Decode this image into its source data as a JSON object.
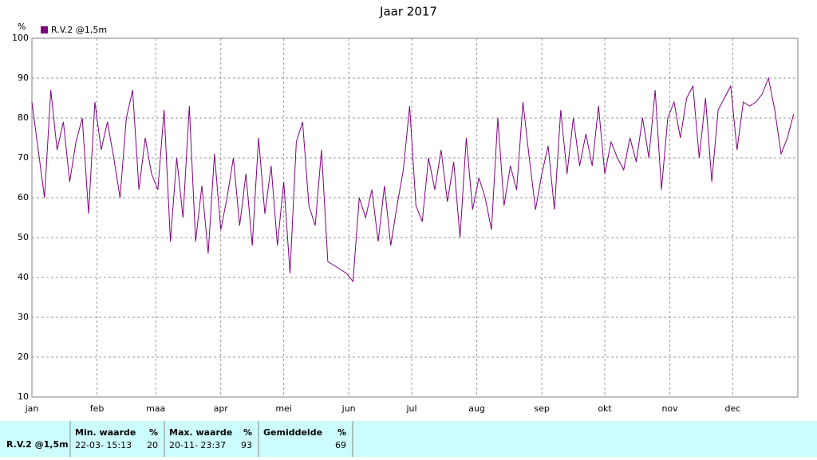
{
  "chart_data": {
    "type": "line",
    "title": "Jaar 2017",
    "y_label": "%",
    "x": [
      0,
      3,
      6,
      9,
      12,
      15,
      18,
      21,
      24,
      27,
      30,
      33,
      36,
      39,
      42,
      45,
      48,
      51,
      54,
      57,
      60,
      63,
      66,
      69,
      72,
      75,
      78,
      81,
      84,
      87,
      90,
      93,
      96,
      99,
      102,
      105,
      108,
      111,
      114,
      117,
      120,
      123,
      126,
      129,
      132,
      135,
      138,
      141,
      144,
      147,
      150,
      153,
      156,
      159,
      162,
      165,
      168,
      171,
      174,
      177,
      180,
      183,
      186,
      189,
      192,
      195,
      198,
      201,
      204,
      207,
      210,
      213,
      216,
      219,
      222,
      225,
      228,
      231,
      234,
      237,
      240,
      243,
      246,
      249,
      252,
      255,
      258,
      261,
      264,
      267,
      270,
      273,
      276,
      279,
      282,
      285,
      288,
      291,
      294,
      297,
      300,
      303,
      306,
      309,
      312,
      315,
      318,
      321,
      324,
      327,
      330,
      333,
      336,
      339,
      342,
      345,
      348,
      351,
      354,
      357,
      360,
      363
    ],
    "series": [
      {
        "name": "R.V.2 @1,5m",
        "color": "#800080",
        "values": [
          84,
          72,
          60,
          87,
          72,
          79,
          64,
          74,
          80,
          56,
          84,
          72,
          79,
          70,
          60,
          80,
          87,
          62,
          75,
          66,
          62,
          82,
          49,
          70,
          55,
          83,
          49,
          63,
          46,
          71,
          52,
          60,
          70,
          53,
          66,
          48,
          75,
          56,
          68,
          48,
          64,
          41,
          74,
          79,
          58,
          53,
          72,
          44,
          43,
          42,
          41,
          39,
          60,
          55,
          62,
          49,
          63,
          48,
          58,
          67,
          83,
          58,
          54,
          70,
          62,
          72,
          59,
          69,
          50,
          75,
          57,
          65,
          60,
          52,
          80,
          58,
          68,
          62,
          84,
          70,
          57,
          66,
          73,
          57,
          82,
          66,
          80,
          68,
          76,
          68,
          83,
          66,
          74,
          70,
          67,
          75,
          69,
          80,
          70,
          87,
          62,
          80,
          84,
          75,
          85,
          88,
          70,
          85,
          64,
          82,
          85,
          88,
          72,
          84,
          83,
          84,
          86,
          90,
          82,
          71,
          75,
          81
        ]
      }
    ],
    "xlim": [
      0,
      365
    ],
    "xticks": [
      {
        "value": 0,
        "label": "jan"
      },
      {
        "value": 31,
        "label": "feb"
      },
      {
        "value": 59,
        "label": "maa"
      },
      {
        "value": 90,
        "label": "apr"
      },
      {
        "value": 120,
        "label": "mei"
      },
      {
        "value": 151,
        "label": "jun"
      },
      {
        "value": 181,
        "label": "jul"
      },
      {
        "value": 212,
        "label": "aug"
      },
      {
        "value": 243,
        "label": "sep"
      },
      {
        "value": 273,
        "label": "okt"
      },
      {
        "value": 304,
        "label": "nov"
      },
      {
        "value": 334,
        "label": "dec"
      }
    ],
    "ylim": [
      10,
      100
    ],
    "yticks": [
      10,
      20,
      30,
      40,
      50,
      60,
      70,
      80,
      90,
      100
    ],
    "grid": true,
    "legend": "top-left"
  },
  "summary": {
    "row_label": "R.V.2 @1,5m",
    "min": {
      "header": "Min. waarde",
      "unit": "%",
      "time": "22-03- 15:13",
      "value": "20"
    },
    "max": {
      "header": "Max. waarde",
      "unit": "%",
      "time": "20-11- 23:37",
      "value": "93"
    },
    "avg": {
      "header": "Gemiddelde",
      "unit": "%",
      "value": "69"
    }
  }
}
